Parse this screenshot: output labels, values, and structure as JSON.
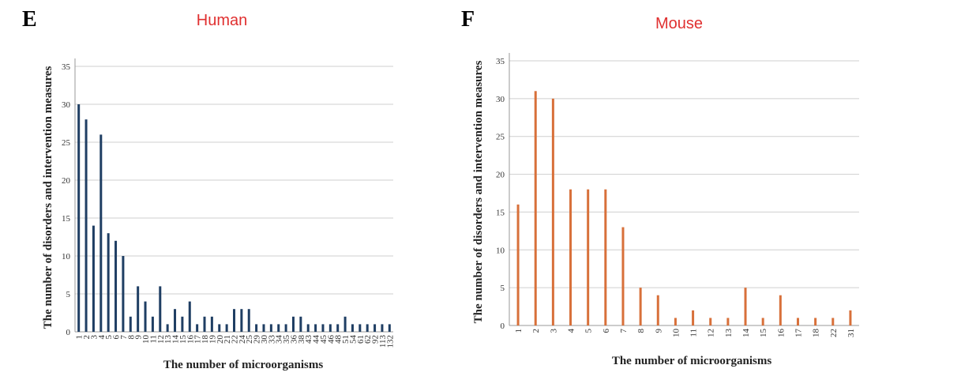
{
  "panels": [
    {
      "letter": "E"
    },
    {
      "letter": "F"
    }
  ],
  "chart_data": [
    {
      "type": "bar",
      "title": "Human",
      "xlabel": "The number of microorganisms",
      "ylabel": "The number of disorders and intervention measures",
      "ylim": [
        0,
        35
      ],
      "yticks": [
        0,
        5,
        10,
        15,
        20,
        25,
        30,
        35
      ],
      "grid": true,
      "bar_color": "#1f3e63",
      "categories": [
        "1",
        "2",
        "3",
        "4",
        "5",
        "6",
        "7",
        "8",
        "9",
        "10",
        "11",
        "12",
        "13",
        "14",
        "15",
        "16",
        "17",
        "18",
        "19",
        "20",
        "21",
        "22",
        "24",
        "25",
        "29",
        "30",
        "33",
        "34",
        "35",
        "36",
        "38",
        "43",
        "44",
        "45",
        "46",
        "48",
        "51",
        "54",
        "61",
        "62",
        "92",
        "113",
        "132"
      ],
      "values": [
        30,
        28,
        14,
        26,
        13,
        12,
        10,
        2,
        6,
        4,
        2,
        6,
        1,
        3,
        2,
        4,
        1,
        2,
        2,
        1,
        1,
        3,
        3,
        3,
        1,
        1,
        1,
        1,
        1,
        2,
        2,
        1,
        1,
        1,
        1,
        1,
        2,
        1,
        1,
        1,
        1,
        1,
        1
      ]
    },
    {
      "type": "bar",
      "title": "Mouse",
      "xlabel": "The number of microorganisms",
      "ylabel": "The number of disorders and intervention measures",
      "ylim": [
        0,
        35
      ],
      "yticks": [
        0,
        5,
        10,
        15,
        20,
        25,
        30,
        35
      ],
      "grid": true,
      "bar_color": "#d8703a",
      "categories": [
        "1",
        "2",
        "3",
        "4",
        "5",
        "6",
        "7",
        "8",
        "9",
        "10",
        "11",
        "12",
        "13",
        "14",
        "15",
        "16",
        "17",
        "18",
        "22",
        "31"
      ],
      "values": [
        16,
        31,
        30,
        18,
        18,
        18,
        13,
        5,
        4,
        1,
        2,
        1,
        1,
        5,
        1,
        4,
        1,
        1,
        1,
        2
      ]
    }
  ]
}
